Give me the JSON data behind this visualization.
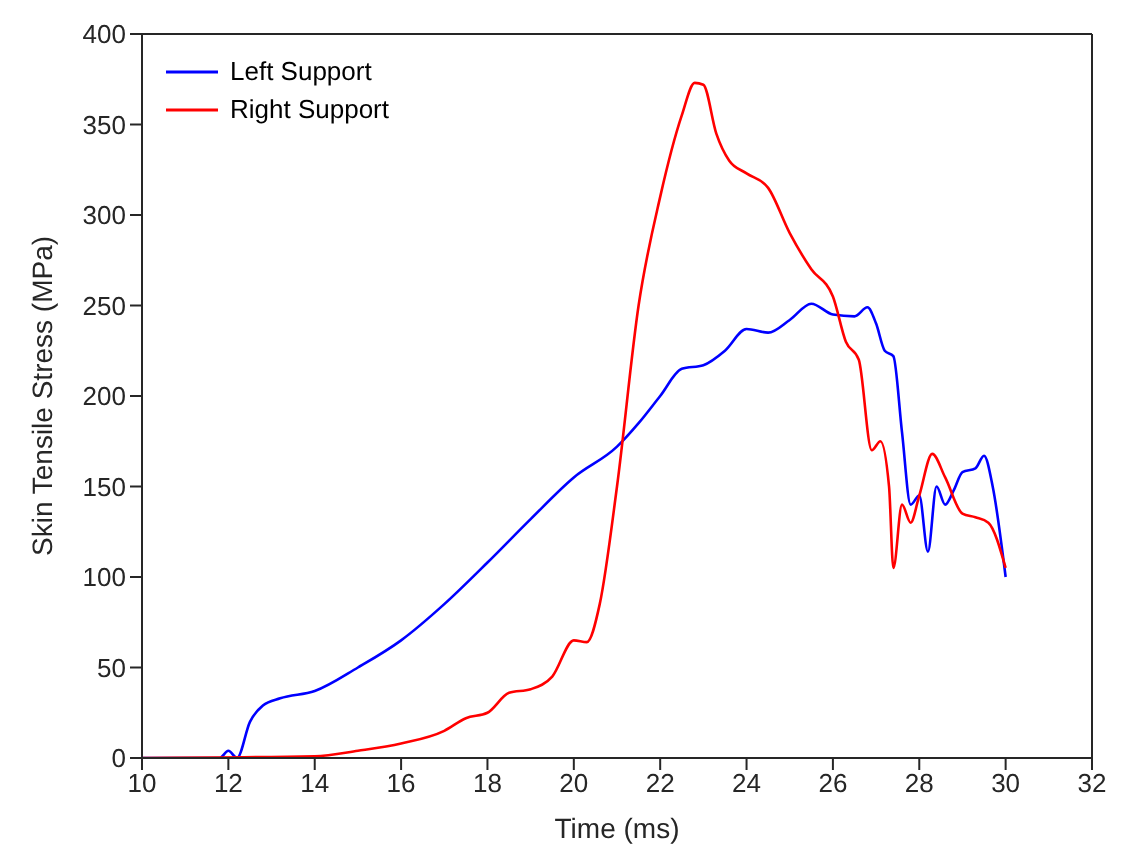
{
  "chart_data": {
    "type": "line",
    "xlabel": "Time (ms)",
    "ylabel": "Skin Tensile Stress (MPa)",
    "xlim": [
      10,
      32
    ],
    "xticks": [
      10,
      12,
      14,
      16,
      18,
      20,
      22,
      24,
      26,
      28,
      30,
      32
    ],
    "ylim": [
      0,
      400
    ],
    "yticks": [
      0,
      50,
      100,
      150,
      200,
      250,
      300,
      350,
      400
    ],
    "legend": "top left",
    "grid": false,
    "series": [
      {
        "name": "Left Support",
        "color": "#0000ff",
        "x": [
          10,
          11.8,
          12,
          12.2,
          12.5,
          12.8,
          13.2,
          14,
          15,
          16,
          17,
          18,
          19,
          20,
          21,
          21.5,
          22,
          22.5,
          23,
          23.5,
          24,
          24.5,
          25,
          25.5,
          26,
          26.5,
          26.8,
          27,
          27.2,
          27.4,
          27.6,
          27.8,
          28,
          28.2,
          28.4,
          28.6,
          28.8,
          29,
          29.3,
          29.5,
          29.7,
          30
        ],
        "values": [
          0,
          0,
          4,
          0,
          20,
          29,
          33,
          37,
          50,
          65,
          85,
          108,
          132,
          155,
          172,
          185,
          200,
          215,
          217,
          225,
          237,
          235,
          242,
          251,
          245,
          244,
          249,
          240,
          225,
          222,
          180,
          140,
          145,
          114,
          150,
          140,
          148,
          158,
          160,
          167,
          150,
          100
        ]
      },
      {
        "name": "Right Support",
        "color": "#ff0000",
        "x": [
          10,
          14,
          15,
          16,
          17,
          17.5,
          18,
          18.5,
          19,
          19.5,
          20,
          20.3,
          20.6,
          21,
          21.5,
          22,
          22.5,
          22.8,
          23,
          23.3,
          23.6,
          24,
          24.5,
          25,
          25.5,
          26,
          26.3,
          26.6,
          26.9,
          27.1,
          27.3,
          27.4,
          27.6,
          27.8,
          28,
          28.3,
          28.6,
          29,
          29.3,
          29.6,
          30
        ],
        "values": [
          0,
          1,
          4,
          8,
          15,
          22,
          25,
          36,
          38,
          45,
          65,
          64,
          85,
          150,
          250,
          310,
          355,
          373,
          372,
          345,
          330,
          323,
          315,
          290,
          270,
          255,
          230,
          220,
          170,
          175,
          150,
          105,
          140,
          130,
          145,
          168,
          155,
          135,
          133,
          130,
          105
        ]
      }
    ]
  }
}
